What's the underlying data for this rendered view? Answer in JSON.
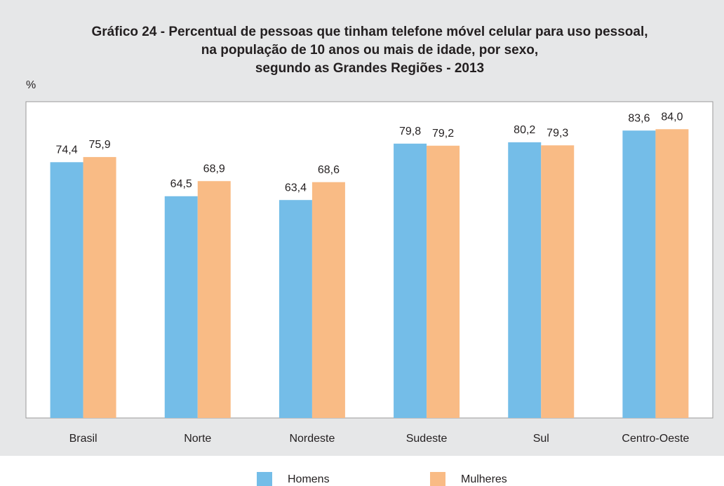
{
  "chart_data": {
    "type": "bar",
    "title": [
      "Gráfico 24 - Percentual de pessoas que tinham telefone móvel celular para uso pessoal,",
      "na população de 10 anos ou mais de idade, por sexo,",
      "segundo as Grandes Regiões - 2013"
    ],
    "y_label": "%",
    "categories": [
      "Brasil",
      "Norte",
      "Nordeste",
      "Sudeste",
      "Sul",
      "Centro-Oeste"
    ],
    "series": [
      {
        "name": "Homens",
        "color": "#74bde8",
        "values": [
          74.4,
          64.5,
          63.4,
          79.8,
          80.2,
          83.6
        ],
        "value_labels": [
          "74,4",
          "64,5",
          "63,4",
          "79,8",
          "80,2",
          "83,6"
        ]
      },
      {
        "name": "Mulheres",
        "color": "#f9bb85",
        "values": [
          75.9,
          68.9,
          68.6,
          79.2,
          79.3,
          84.0
        ],
        "value_labels": [
          "75,9",
          "68,9",
          "68,6",
          "79,2",
          "79,3",
          "84,0"
        ]
      }
    ],
    "ylim": [
      0,
      92
    ],
    "legend": "bottom"
  }
}
